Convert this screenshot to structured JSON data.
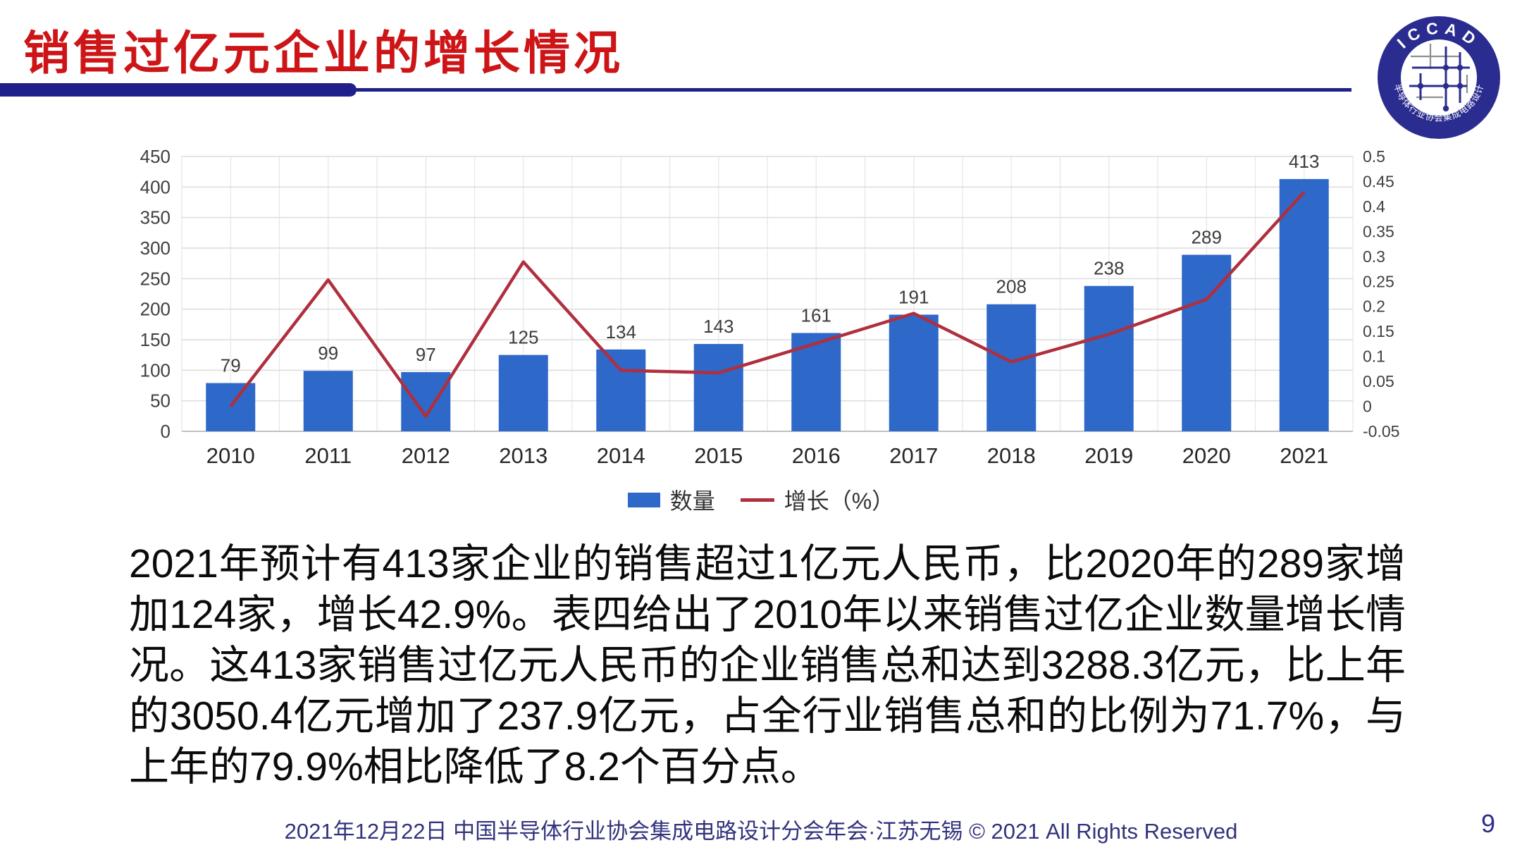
{
  "header": {
    "title": "销售过亿元企业的增长情况"
  },
  "logo": {
    "text_top": "ICCAD",
    "text_bottom": "中国半导体行业协会集成电路设计分会"
  },
  "theme": {
    "title_red": "#CD1518",
    "rule_navy": "#20208C",
    "footer_navy": "#32327E",
    "page_number_navy": "#2B2B8C",
    "bar_blue": "#2E68C8",
    "line_red": "#B02F3E"
  },
  "chart_data": {
    "type": "bar+line combo",
    "categories": [
      "2010",
      "2011",
      "2012",
      "2013",
      "2014",
      "2015",
      "2016",
      "2017",
      "2018",
      "2019",
      "2020",
      "2021"
    ],
    "series": [
      {
        "name": "数量",
        "type": "bar",
        "axis": "left",
        "color": "#2E68C8",
        "values": [
          79,
          99,
          97,
          125,
          134,
          143,
          161,
          191,
          208,
          238,
          289,
          413
        ]
      },
      {
        "name": "增长（%）",
        "type": "line",
        "axis": "right",
        "color": "#B02F3E",
        "values": [
          0.0,
          0.253,
          -0.02,
          0.289,
          0.072,
          0.067,
          0.126,
          0.186,
          0.089,
          0.144,
          0.214,
          0.429
        ]
      }
    ],
    "bar_labels": [
      "79",
      "99",
      "97",
      "125",
      "134",
      "143",
      "161",
      "191",
      "208",
      "238",
      "289",
      "413"
    ],
    "left_axis": {
      "min": 0,
      "max": 450,
      "step": 50,
      "ticks": [
        "450",
        "400",
        "350",
        "300",
        "250",
        "200",
        "150",
        "100",
        "50",
        "0"
      ]
    },
    "right_axis": {
      "min": -0.05,
      "max": 0.5,
      "step": 0.05,
      "ticks": [
        "0.5",
        "0.45",
        "0.4",
        "0.35",
        "0.3",
        "0.25",
        "0.2",
        "0.15",
        "0.1",
        "0.05",
        "0",
        "-0.05"
      ]
    },
    "title": "",
    "xlabel": "",
    "ylabel": "",
    "grid": true,
    "legend_position": "bottom"
  },
  "body": {
    "paragraph": "2021年预计有413家企业的销售超过1亿元人民币，比2020年的289家增加124家，增长42.9%。表四给出了2010年以来销售过亿企业数量增长情况。这413家销售过亿元人民币的企业销售总和达到3288.3亿元，比上年的3050.4亿元增加了237.9亿元，占全行业销售总和的比例为71.7%，与上年的79.9%相比降低了8.2个百分点。"
  },
  "footer": {
    "text": "2021年12月22日 中国半导体行业协会集成电路设计分会年会·江苏无锡 © 2021 All Rights Reserved",
    "page_number": "9"
  }
}
